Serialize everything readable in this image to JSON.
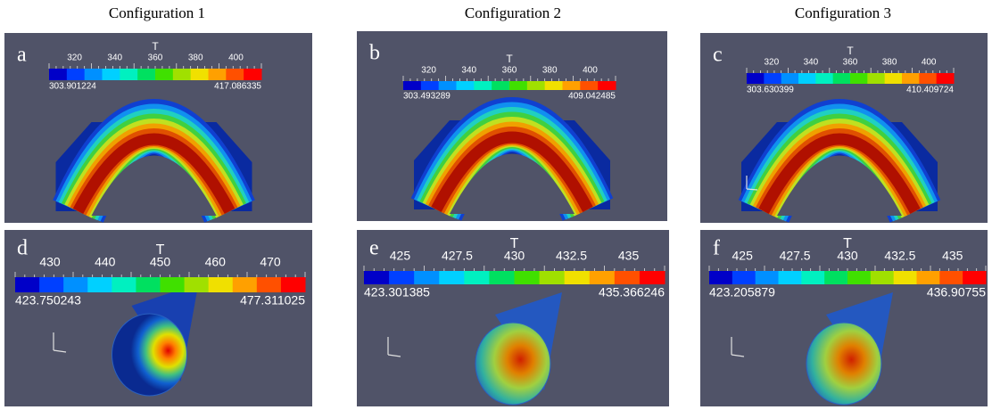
{
  "columns": [
    "Configuration 1",
    "Configuration 2",
    "Configuration 3"
  ],
  "panels": [
    {
      "letter": "a",
      "scale": {
        "title": "T",
        "ticks": [
          "320",
          "340",
          "360",
          "380",
          "400"
        ],
        "min": "303.901224",
        "max": "417.086335"
      }
    },
    {
      "letter": "b",
      "scale": {
        "title": "T",
        "ticks": [
          "320",
          "340",
          "360",
          "380",
          "400"
        ],
        "min": "303.493289",
        "max": "409.042485"
      }
    },
    {
      "letter": "c",
      "scale": {
        "title": "T",
        "ticks": [
          "320",
          "340",
          "360",
          "380",
          "400"
        ],
        "min": "303.630399",
        "max": "410.409724"
      }
    },
    {
      "letter": "d",
      "scale": {
        "title": "T",
        "ticks": [
          "430",
          "440",
          "450",
          "460",
          "470"
        ],
        "min": "423.750243",
        "max": "477.311025"
      }
    },
    {
      "letter": "e",
      "scale": {
        "title": "T",
        "ticks": [
          "425",
          "427.5",
          "430",
          "432.5",
          "435"
        ],
        "min": "423.301385",
        "max": "435.366246"
      }
    },
    {
      "letter": "f",
      "scale": {
        "title": "T",
        "ticks": [
          "425",
          "427.5",
          "430",
          "432.5",
          "435"
        ],
        "min": "423.205879",
        "max": "436.90755"
      }
    }
  ]
}
